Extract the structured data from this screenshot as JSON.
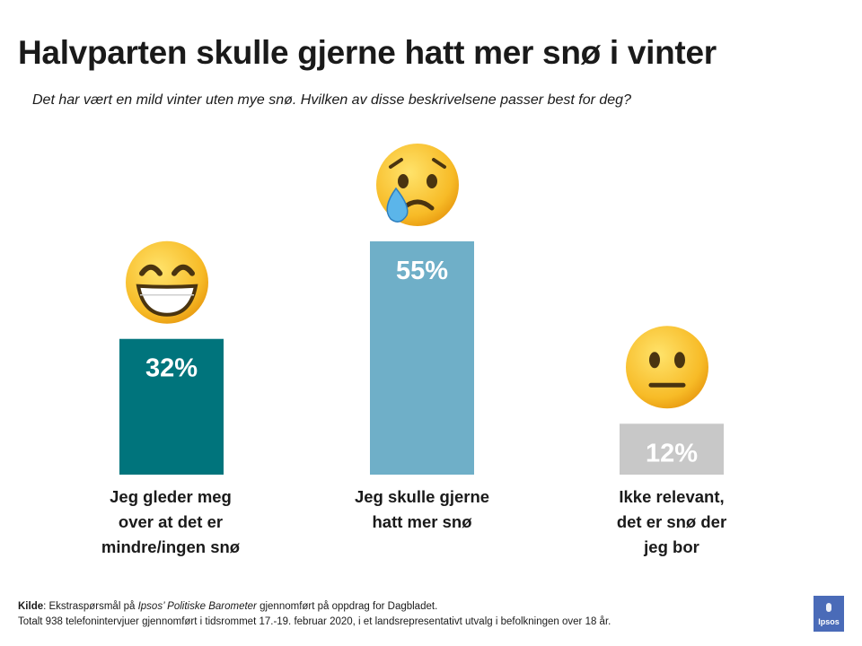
{
  "slide": {
    "title": "Halvparten skulle gjerne hatt mer snø i vinter",
    "subtitle": "Det har vært en mild vinter uten mye snø. Hvilken av disse beskrivelsene passer best for deg?"
  },
  "chart_data": {
    "type": "bar",
    "categories": [
      "Jeg gleder meg\nover at det er\nmindre/ingen snø",
      "Jeg skulle gjerne\nhatt mer snø",
      "Ikke relevant,\ndet er snø der\njeg bor"
    ],
    "values": [
      32,
      55,
      12
    ],
    "value_labels": [
      "32%",
      "55%",
      "12%"
    ],
    "colors": [
      "#00747c",
      "#6fafc8",
      "#c8c8c8"
    ],
    "icons": [
      "grinning-face-icon",
      "crying-face-icon",
      "neutral-face-icon"
    ],
    "ylim": [
      0,
      55
    ],
    "grid": false,
    "legend": "none"
  },
  "source": {
    "label": "Kilde",
    "line1_pre": ": Ekstraspørsmål på ",
    "line1_italic": "Ipsos’ Politiske Barometer",
    "line1_post": " gjennomført på oppdrag for Dagbladet.",
    "line2": "Totalt 938  telefonintervjuer gjennomført i tidsrommet 17.-19. februar 2020,  i et landsrepresentativt utvalg i befolkningen over 18 år."
  },
  "logo": {
    "text": "Ipsos"
  }
}
